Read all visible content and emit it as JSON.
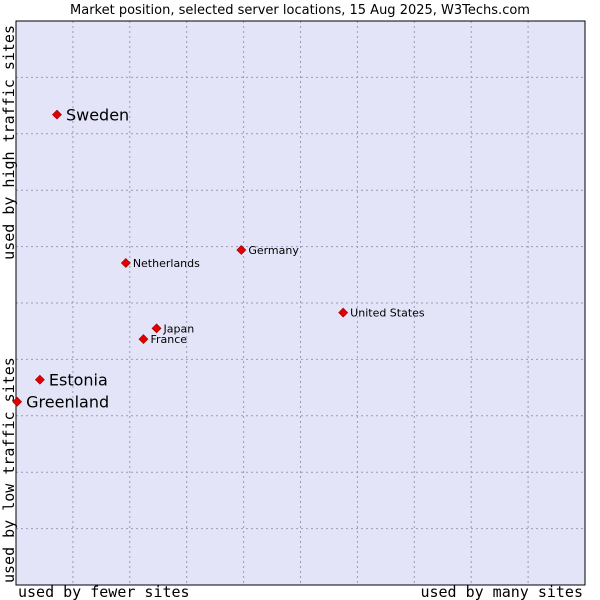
{
  "chart_data": {
    "type": "scatter",
    "title": "Market position, selected server locations, 15 Aug 2025, W3Techs.com",
    "xlabel_left": "used by fewer sites",
    "xlabel_right": "used by many sites",
    "ylabel_bottom": "used by low traffic sites",
    "ylabel_top": "used by high traffic sites",
    "xlim": [
      0,
      10
    ],
    "ylim": [
      0,
      10
    ],
    "grid": true,
    "colors": {
      "plot_bg": "#e4e4f8",
      "grid": "#9a9ab8",
      "border": "#000000",
      "point": "#e00000"
    },
    "points": [
      {
        "label": "Sweden",
        "x": 0.72,
        "y": 8.34,
        "size": "large"
      },
      {
        "label": "Germany",
        "x": 3.96,
        "y": 5.94,
        "size": "small"
      },
      {
        "label": "Netherlands",
        "x": 1.93,
        "y": 5.71,
        "size": "small"
      },
      {
        "label": "United States",
        "x": 5.75,
        "y": 4.83,
        "size": "small"
      },
      {
        "label": "Japan",
        "x": 2.47,
        "y": 4.55,
        "size": "small"
      },
      {
        "label": "France",
        "x": 2.24,
        "y": 4.36,
        "size": "small"
      },
      {
        "label": "Estonia",
        "x": 0.42,
        "y": 3.64,
        "size": "large"
      },
      {
        "label": "Greenland",
        "x": 0.02,
        "y": 3.25,
        "size": "large"
      }
    ]
  }
}
